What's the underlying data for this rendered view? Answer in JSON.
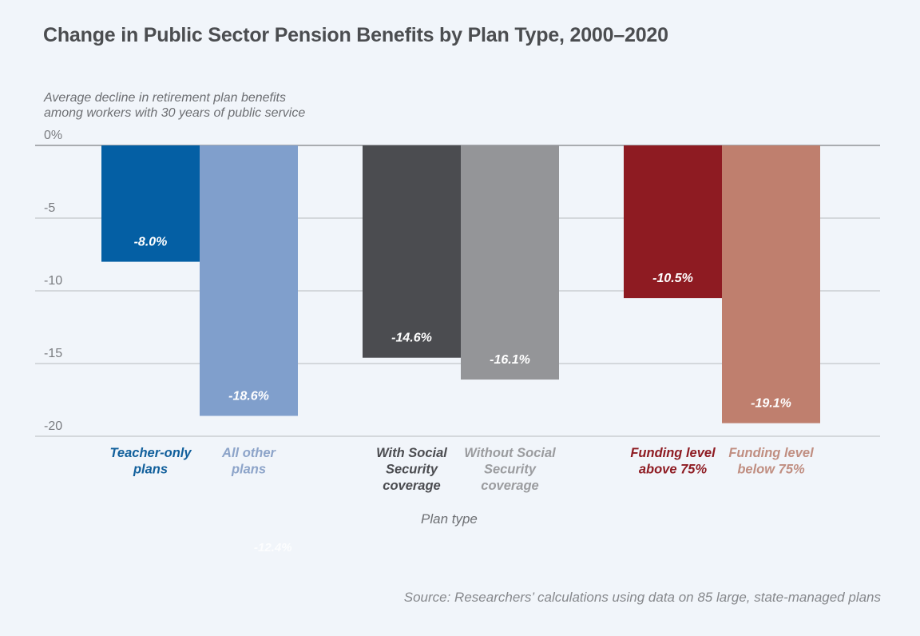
{
  "chart_data": {
    "type": "bar",
    "title": "Change in Public Sector Pension Benefits by Plan Type, 2000–2020",
    "subtitle": [
      "Average decline in retirement plan benefits",
      "among workers with 30 years of public service"
    ],
    "xlabel": "Plan type",
    "ylabel": "",
    "ylim": [
      -20,
      0
    ],
    "yticks": [
      0,
      -5,
      -10,
      -15,
      -20
    ],
    "ytick_labels": [
      "0%",
      "-5",
      "-10",
      "-15",
      "-20"
    ],
    "grid": true,
    "legend": "none",
    "categories": [
      [
        "Teacher-only",
        "plans"
      ],
      [
        "All other",
        "plans"
      ],
      [
        "With Social",
        "Security",
        "coverage"
      ],
      [
        "Without Social",
        "Security",
        "coverage"
      ],
      [
        "Funding level",
        "above 75%"
      ],
      [
        "Funding level",
        "below 75%"
      ]
    ],
    "groups": [
      [
        0,
        1
      ],
      [
        2,
        3
      ],
      [
        4,
        5
      ]
    ],
    "values": [
      -8.0,
      -18.6,
      -14.6,
      -16.1,
      -10.5,
      -19.1
    ],
    "data_labels": [
      "-8.0%",
      "-18.6%",
      "-14.6%",
      "-16.1%",
      "-10.5%",
      "-19.1%"
    ],
    "bar_colors": [
      "#045fa4",
      "#809fcc",
      "#4b4c50",
      "#949598",
      "#8e1b22",
      "#bf7f6e"
    ],
    "label_colors": [
      "#12609c",
      "#8da4c9",
      "#4b4c50",
      "#9b9c9f",
      "#8e1b22",
      "#c08e81"
    ],
    "source": "Source: Researchers’ calculations using data on 85 large, state-managed plans",
    "stray_label": "-12.4%"
  }
}
